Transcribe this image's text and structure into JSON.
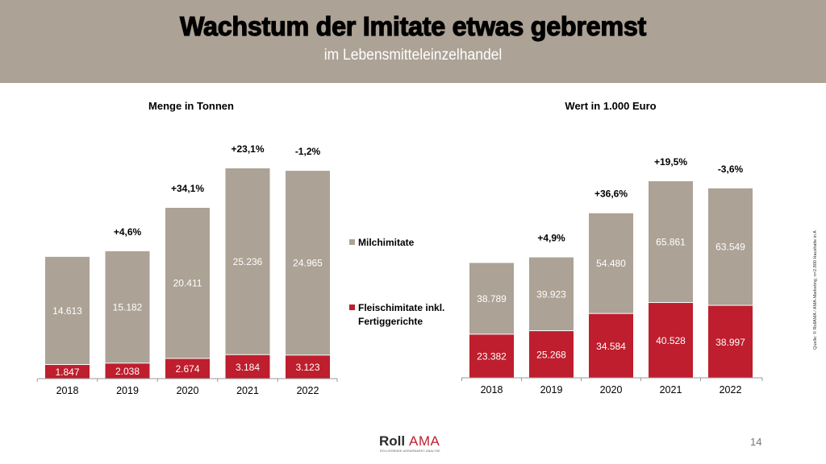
{
  "header": {
    "title": "Wachstum der Imitate etwas gebremst",
    "subtitle": "im Lebensmitteleinzelhandel"
  },
  "colors": {
    "milch": "#aca295",
    "fleisch": "#be1e2d",
    "header_bg": "#aca295"
  },
  "legend": {
    "items": [
      {
        "label": "Milchimitate",
        "color": "#aca295"
      },
      {
        "label_line1": "Fleischimitate inkl.",
        "label_line2": "Fertiggerichte",
        "color": "#be1e2d"
      }
    ]
  },
  "source": "Quelle: © RollAMA / AMA-Marketing, n=2.800 Haushalte in A",
  "logo": {
    "part1": "Roll",
    "part2": "AMA",
    "tagline": "ROLLIERENDE AGRARMARKT-ANALYSE"
  },
  "page_number": "14",
  "chart_data": [
    {
      "type": "bar",
      "stacked": true,
      "title": "Menge in Tonnen",
      "categories": [
        "2018",
        "2019",
        "2020",
        "2021",
        "2022"
      ],
      "series": [
        {
          "name": "Fleischimitate inkl. Fertiggerichte",
          "values": [
            1847,
            2038,
            2674,
            3184,
            3123
          ],
          "labels": [
            "1.847",
            "2.038",
            "2.674",
            "3.184",
            "3.123"
          ]
        },
        {
          "name": "Milchimitate",
          "values": [
            14613,
            15182,
            20411,
            25236,
            24965
          ],
          "labels": [
            "14.613",
            "15.182",
            "20.411",
            "25.236",
            "24.965"
          ]
        }
      ],
      "growth_labels": [
        "",
        "+4,6%",
        "+34,1%",
        "+23,1%",
        "-1,2%"
      ],
      "xlabel": "",
      "ylabel": "",
      "ylim": [
        0,
        30000
      ],
      "grid": false
    },
    {
      "type": "bar",
      "stacked": true,
      "title": "Wert in 1.000 Euro",
      "categories": [
        "2018",
        "2019",
        "2020",
        "2021",
        "2022"
      ],
      "series": [
        {
          "name": "Fleischimitate inkl. Fertiggerichte",
          "values": [
            23382,
            25268,
            34584,
            40528,
            38997
          ],
          "labels": [
            "23.382",
            "25.268",
            "34.584",
            "40.528",
            "38.997"
          ]
        },
        {
          "name": "Milchimitate",
          "values": [
            38789,
            39923,
            54480,
            65861,
            63549
          ],
          "labels": [
            "38.789",
            "39.923",
            "54.480",
            "65.861",
            "63.549"
          ]
        }
      ],
      "growth_labels": [
        "",
        "+4,9%",
        "+36,6%",
        "+19,5%",
        "-3,6%"
      ],
      "xlabel": "",
      "ylabel": "",
      "ylim": [
        0,
        110000
      ],
      "grid": false
    }
  ]
}
